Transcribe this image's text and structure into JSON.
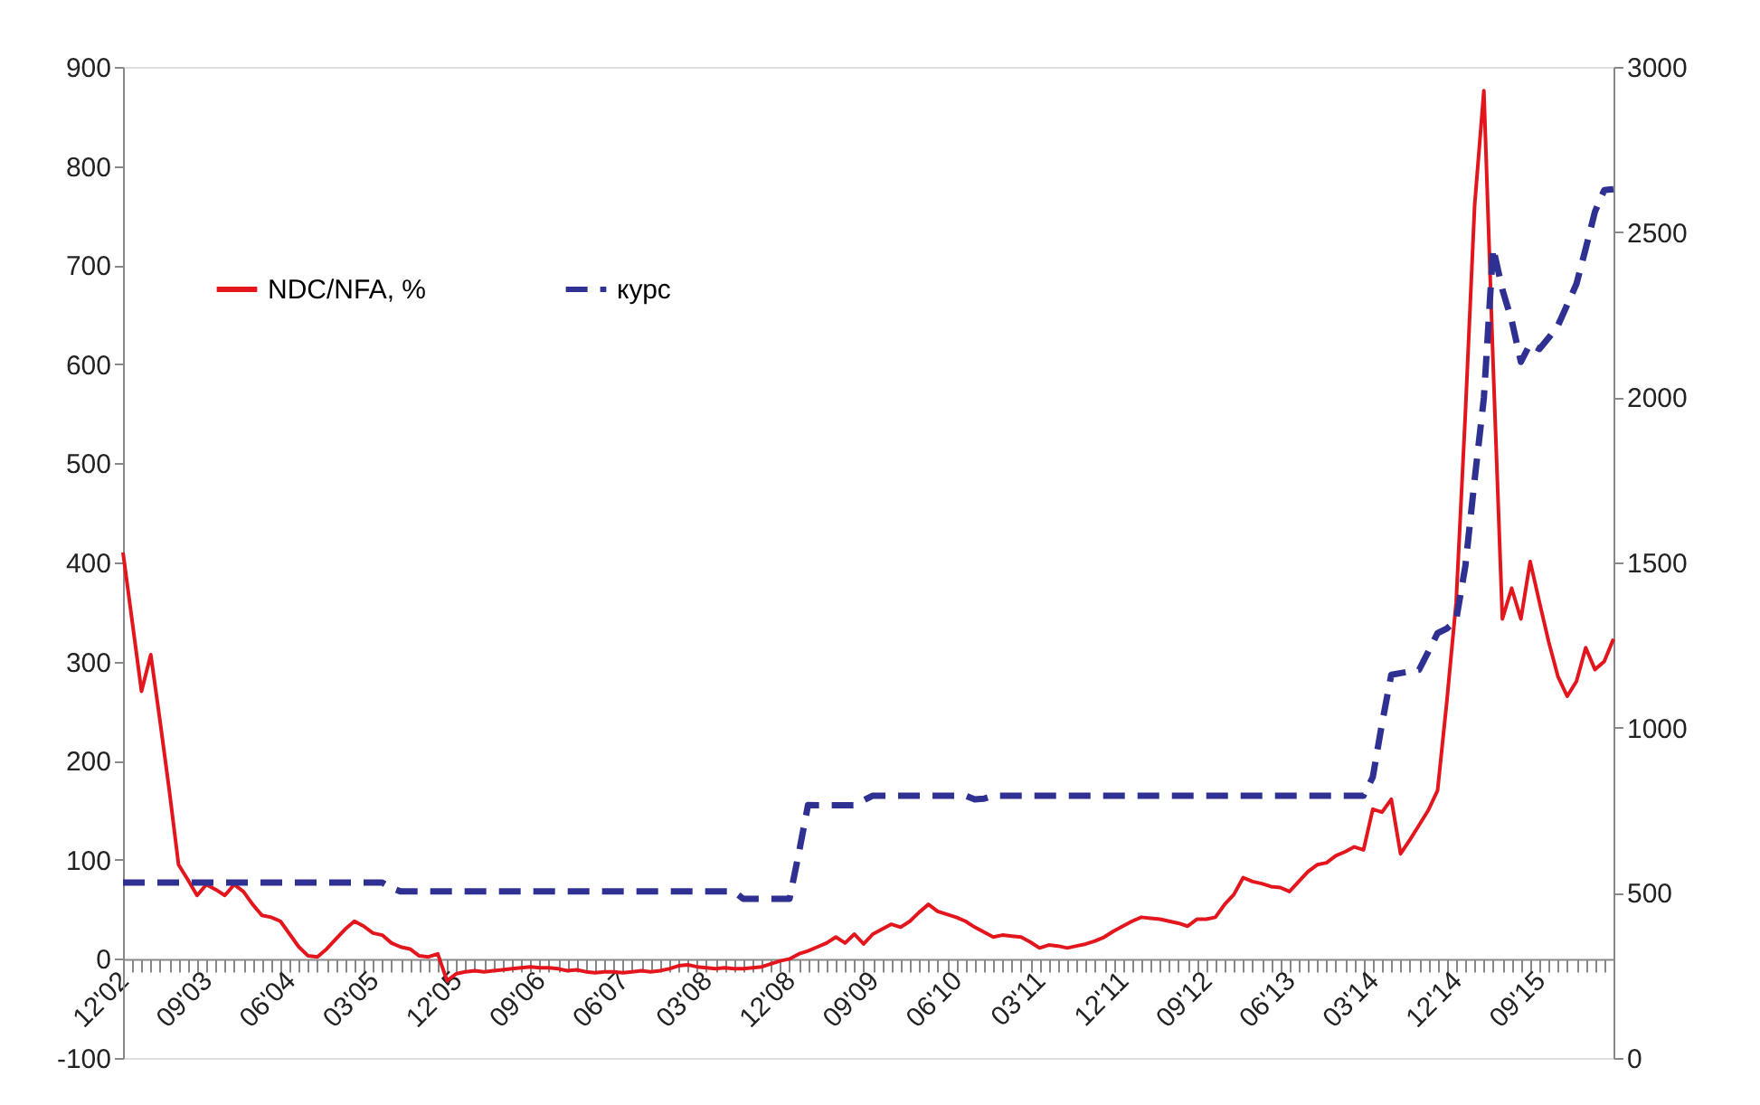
{
  "chart_data": {
    "type": "line",
    "categories": [
      "12'02",
      null,
      null,
      null,
      null,
      null,
      null,
      null,
      null,
      "09'03",
      null,
      null,
      null,
      null,
      null,
      null,
      null,
      null,
      "06'04",
      null,
      null,
      null,
      null,
      null,
      null,
      null,
      null,
      "03'05",
      null,
      null,
      null,
      null,
      null,
      null,
      null,
      null,
      "12'05",
      null,
      null,
      null,
      null,
      null,
      null,
      null,
      null,
      "09'06",
      null,
      null,
      null,
      null,
      null,
      null,
      null,
      null,
      "06'07",
      null,
      null,
      null,
      null,
      null,
      null,
      null,
      null,
      "03'08",
      null,
      null,
      null,
      null,
      null,
      null,
      null,
      null,
      "12'08",
      null,
      null,
      null,
      null,
      null,
      null,
      null,
      null,
      "09'09",
      null,
      null,
      null,
      null,
      null,
      null,
      null,
      null,
      "06'10",
      null,
      null,
      null,
      null,
      null,
      null,
      null,
      null,
      "03'11",
      null,
      null,
      null,
      null,
      null,
      null,
      null,
      null,
      "12'11",
      null,
      null,
      null,
      null,
      null,
      null,
      null,
      null,
      "09'12",
      null,
      null,
      null,
      null,
      null,
      null,
      null,
      null,
      "06'13",
      null,
      null,
      null,
      null,
      null,
      null,
      null,
      null,
      "03'14",
      null,
      null,
      null,
      null,
      null,
      null,
      null,
      null,
      "12'14",
      null,
      null,
      null,
      null,
      null,
      null,
      null,
      null,
      "09'15",
      null,
      null,
      null,
      null,
      null,
      null,
      null,
      null
    ],
    "series": [
      {
        "name": "NDC/NFA, %",
        "color": "#e3161d",
        "line_style": "solid",
        "values": [
          410,
          340,
          270,
          307,
          240,
          170,
          95,
          80,
          64,
          75,
          70,
          64,
          75,
          68,
          55,
          44,
          42,
          38,
          25,
          12,
          3,
          2,
          10,
          20,
          30,
          38,
          33,
          26,
          24,
          16,
          12,
          10,
          3,
          2,
          5,
          -22,
          -15,
          -13,
          -12,
          -13,
          -12,
          -11,
          -10,
          -9,
          -8,
          -9,
          -9,
          -10,
          -12,
          -11,
          -13,
          -14,
          -13,
          -13,
          -14,
          -13,
          -12,
          -13,
          -12,
          -10,
          -7,
          -6,
          -8,
          -9,
          -10,
          -9,
          -10,
          -10,
          -9,
          -8,
          -5,
          -2,
          0,
          5,
          8,
          12,
          16,
          22,
          16,
          25,
          15,
          25,
          30,
          35,
          32,
          38,
          47,
          55,
          48,
          45,
          42,
          38,
          32,
          27,
          22,
          24,
          23,
          22,
          17,
          11,
          14,
          13,
          11,
          13,
          15,
          18,
          22,
          28,
          33,
          38,
          42,
          41,
          40,
          38,
          36,
          33,
          40,
          40,
          42,
          55,
          65,
          82,
          78,
          76,
          73,
          72,
          68,
          78,
          88,
          95,
          97,
          104,
          108,
          113,
          110,
          151,
          148,
          161,
          106,
          120,
          135,
          150,
          170,
          260,
          359,
          550,
          760,
          876,
          600,
          343,
          374,
          343,
          401,
          360,
          320,
          285,
          265,
          280,
          314,
          292,
          300,
          323
        ]
      },
      {
        "name": "курс",
        "color": "#2e3192",
        "line_style": "dashed",
        "axis": "y2",
        "values": [
          531,
          531,
          531,
          531,
          531,
          531,
          531,
          531,
          531,
          531,
          531,
          531,
          531,
          531,
          531,
          531,
          531,
          531,
          531,
          531,
          531,
          531,
          531,
          531,
          531,
          531,
          531,
          531,
          531,
          515,
          504,
          504,
          504,
          504,
          504,
          504,
          504,
          504,
          504,
          504,
          504,
          504,
          504,
          504,
          504,
          504,
          504,
          504,
          504,
          504,
          504,
          504,
          504,
          504,
          504,
          504,
          504,
          504,
          504,
          504,
          504,
          504,
          504,
          504,
          504,
          504,
          504,
          482,
          482,
          482,
          482,
          482,
          482,
          620,
          766,
          765,
          765,
          765,
          765,
          765,
          780,
          794,
          794,
          794,
          794,
          794,
          794,
          794,
          794,
          794,
          794,
          794,
          783,
          785,
          794,
          794,
          794,
          794,
          794,
          794,
          794,
          794,
          794,
          794,
          794,
          794,
          794,
          794,
          794,
          794,
          794,
          794,
          794,
          794,
          794,
          794,
          794,
          794,
          794,
          794,
          794,
          794,
          794,
          794,
          794,
          794,
          794,
          794,
          794,
          794,
          794,
          794,
          794,
          794,
          794,
          850,
          1013,
          1160,
          1165,
          1170,
          1175,
          1230,
          1286,
          1300,
          1325,
          1489,
          1750,
          1998,
          2452,
          2326,
          2233,
          2107,
          2162,
          2146,
          2180,
          2217,
          2280,
          2343,
          2450,
          2562,
          2627,
          2630
        ]
      }
    ],
    "ylim": [
      -100,
      900
    ],
    "yticks": [
      -100,
      0,
      100,
      200,
      300,
      400,
      500,
      600,
      700,
      800,
      900
    ],
    "y2lim": [
      0,
      3000
    ],
    "y2ticks": [
      0,
      500,
      1000,
      1500,
      2000,
      2500,
      3000
    ],
    "legend": "top left",
    "grid": false
  }
}
